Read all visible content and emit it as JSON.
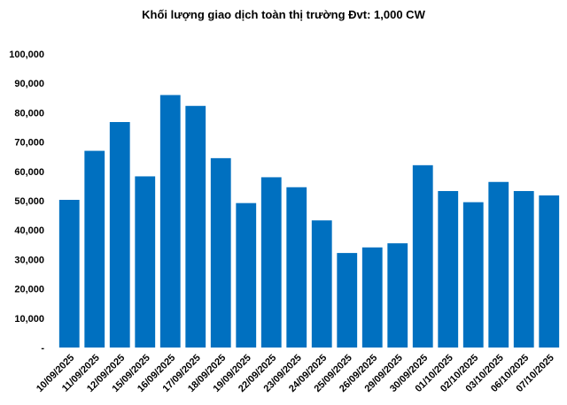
{
  "chart_data": {
    "type": "bar",
    "title": "Khối lượng giao dịch toàn thị trường Đvt: 1,000 CW",
    "xlabel": "",
    "ylabel": "",
    "ylim": [
      0,
      100000
    ],
    "yticks": [
      0,
      10000,
      20000,
      30000,
      40000,
      50000,
      60000,
      70000,
      80000,
      90000,
      100000
    ],
    "ytick_labels": [
      "-",
      "10,000",
      "20,000",
      "30,000",
      "40,000",
      "50,000",
      "60,000",
      "70,000",
      "80,000",
      "90,000",
      "100,000"
    ],
    "categories": [
      "10/09/2025",
      "11/09/2025",
      "12/09/2025",
      "15/09/2025",
      "16/09/2025",
      "17/09/2025",
      "18/09/2025",
      "19/09/2025",
      "22/09/2025",
      "23/09/2025",
      "24/09/2025",
      "25/09/2025",
      "26/09/2025",
      "29/09/2025",
      "30/09/2025",
      "01/10/2025",
      "02/10/2025",
      "03/10/2025",
      "06/10/2025",
      "07/10/2025"
    ],
    "values": [
      50300,
      67000,
      76800,
      58300,
      86000,
      82300,
      64500,
      49200,
      58000,
      54600,
      43300,
      32200,
      34100,
      35500,
      62100,
      53300,
      49500,
      56400,
      53300,
      51800
    ],
    "color": "#0070c0",
    "grid": false,
    "legend": "none"
  }
}
